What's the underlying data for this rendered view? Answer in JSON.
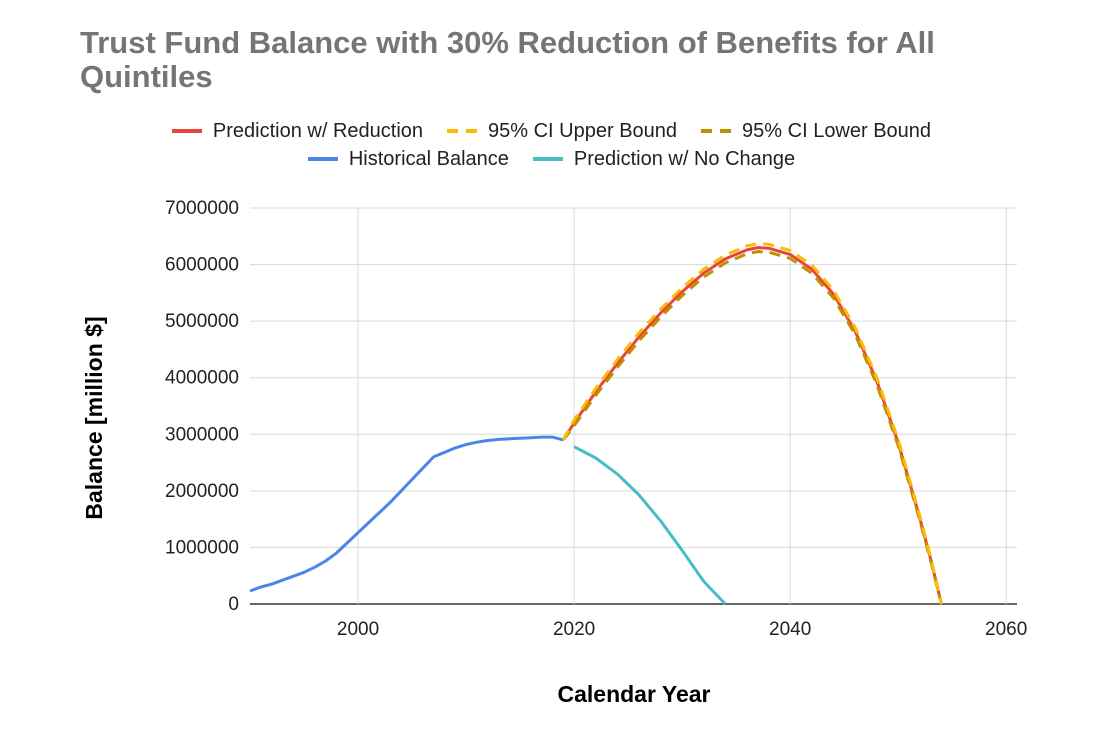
{
  "chart_data": {
    "type": "line",
    "title": "Trust Fund Balance with 30% Reduction of Benefits for All Quintiles",
    "xlabel": "Calendar Year",
    "ylabel": "Balance [million $]",
    "xlim": [
      1990,
      2061
    ],
    "ylim": [
      0,
      7000000
    ],
    "x_ticks": [
      2000,
      2020,
      2040,
      2060
    ],
    "y_ticks": [
      0,
      1000000,
      2000000,
      3000000,
      4000000,
      5000000,
      6000000,
      7000000
    ],
    "grid": true,
    "legend_position": "top",
    "series": [
      {
        "name": "Prediction w/ Reduction",
        "color": "#e8453c",
        "dash": "solid",
        "x": [
          2019,
          2020,
          2022,
          2024,
          2026,
          2028,
          2030,
          2032,
          2034,
          2036,
          2037,
          2038,
          2040,
          2042,
          2044,
          2046,
          2048,
          2050,
          2052,
          2053,
          2054
        ],
        "values": [
          2900000,
          3200000,
          3750000,
          4250000,
          4720000,
          5140000,
          5520000,
          5850000,
          6100000,
          6260000,
          6300000,
          6290000,
          6180000,
          5920000,
          5480000,
          4830000,
          3950000,
          2850000,
          1520000,
          800000,
          0
        ]
      },
      {
        "name": "95% CI Upper Bound",
        "color": "#fbbc04",
        "dash": "dashed",
        "x": [
          2019,
          2020,
          2022,
          2024,
          2026,
          2028,
          2030,
          2032,
          2034,
          2036,
          2037,
          2038,
          2040,
          2042,
          2044,
          2046,
          2048,
          2050,
          2052,
          2053,
          2054
        ],
        "values": [
          2900000,
          3250000,
          3810000,
          4320000,
          4790000,
          5210000,
          5590000,
          5920000,
          6170000,
          6330000,
          6370000,
          6360000,
          6250000,
          5990000,
          5550000,
          4890000,
          4010000,
          2900000,
          1560000,
          830000,
          0
        ]
      },
      {
        "name": "95% CI Lower Bound",
        "color": "#bf9000",
        "dash": "dashed",
        "x": [
          2019,
          2020,
          2022,
          2024,
          2026,
          2028,
          2030,
          2032,
          2034,
          2036,
          2037,
          2038,
          2040,
          2042,
          2044,
          2046,
          2048,
          2050,
          2052,
          2053,
          2054
        ],
        "values": [
          2900000,
          3150000,
          3690000,
          4180000,
          4650000,
          5070000,
          5450000,
          5780000,
          6030000,
          6190000,
          6230000,
          6220000,
          6110000,
          5850000,
          5410000,
          4770000,
          3890000,
          2800000,
          1480000,
          770000,
          0
        ]
      },
      {
        "name": "Historical Balance",
        "color": "#4a86e8",
        "dash": "solid",
        "x": [
          1990,
          1991,
          1992,
          1993,
          1994,
          1995,
          1996,
          1997,
          1998,
          1999,
          2000,
          2001,
          2002,
          2003,
          2004,
          2005,
          2006,
          2007,
          2008,
          2009,
          2010,
          2011,
          2012,
          2013,
          2014,
          2015,
          2016,
          2017,
          2018,
          2019
        ],
        "values": [
          230000,
          300000,
          350000,
          420000,
          490000,
          560000,
          650000,
          760000,
          900000,
          1080000,
          1260000,
          1440000,
          1620000,
          1800000,
          2000000,
          2200000,
          2400000,
          2600000,
          2680000,
          2760000,
          2820000,
          2860000,
          2890000,
          2910000,
          2920000,
          2930000,
          2940000,
          2950000,
          2950000,
          2900000
        ]
      },
      {
        "name": "Prediction w/ No Change",
        "color": "#46bdc6",
        "dash": "solid",
        "x": [
          2020,
          2022,
          2024,
          2026,
          2028,
          2030,
          2032,
          2034
        ],
        "values": [
          2780000,
          2580000,
          2300000,
          1930000,
          1470000,
          950000,
          400000,
          0
        ]
      }
    ]
  }
}
